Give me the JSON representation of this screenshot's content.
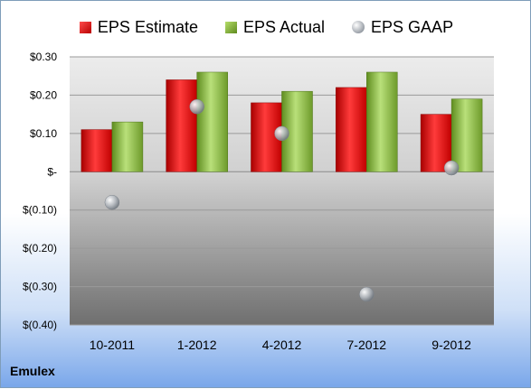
{
  "legend": {
    "estimate": "EPS Estimate",
    "actual": "EPS Actual",
    "gaap": "EPS GAAP"
  },
  "company": "Emulex",
  "colors": {
    "estimate": "#d31f1f",
    "actual": "#8fbc3f",
    "gaap": "#a9adb3",
    "axis_text": "#000000"
  },
  "chart_data": {
    "type": "bar",
    "categories": [
      "10-2011",
      "1-2012",
      "4-2012",
      "7-2012",
      "9-2012"
    ],
    "series": [
      {
        "name": "EPS Estimate",
        "values": [
          0.11,
          0.24,
          0.18,
          0.22,
          0.15
        ]
      },
      {
        "name": "EPS Actual",
        "values": [
          0.13,
          0.26,
          0.21,
          0.26,
          0.19
        ]
      },
      {
        "name": "EPS GAAP",
        "values": [
          -0.08,
          0.17,
          0.1,
          -0.32,
          0.01
        ]
      }
    ],
    "ylim": [
      -0.4,
      0.3
    ],
    "ytick_values": [
      0.3,
      0.2,
      0.1,
      0.0,
      -0.1,
      -0.2,
      -0.3,
      -0.4
    ],
    "ytick_labels": [
      "$0.30",
      "$0.20",
      "$0.10",
      "$-",
      "$(0.10)",
      "$(0.20)",
      "$(0.30)",
      "$(0.40)"
    ],
    "grid": true,
    "legend_position": "top"
  }
}
